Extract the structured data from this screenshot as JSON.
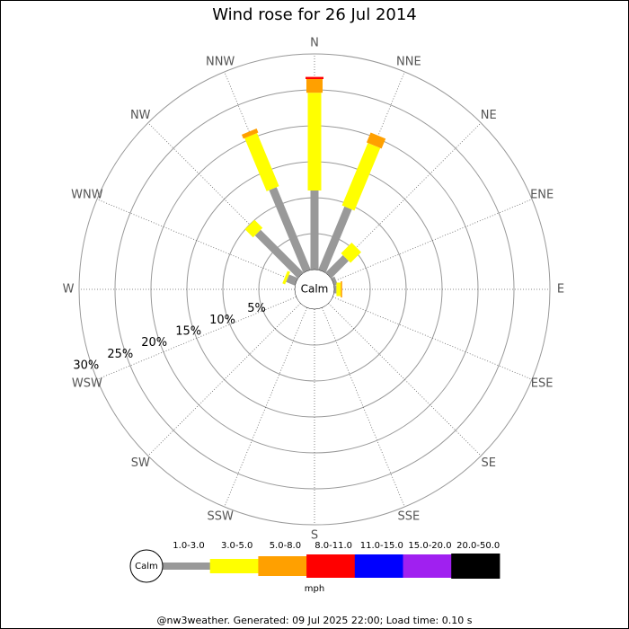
{
  "chart_data": {
    "type": "windrose",
    "title": "Wind rose for 26 Jul 2014",
    "center_label": "Calm",
    "legend_label": "Calm",
    "unit": "mph",
    "footer": "@nw3weather. Generated: 09 Jul 2025 22:00; Load time: 0.10 s",
    "directions": [
      "N",
      "NNE",
      "NE",
      "ENE",
      "E",
      "ESE",
      "SE",
      "SSE",
      "S",
      "SSW",
      "SW",
      "WSW",
      "W",
      "WNW",
      "NW",
      "NNW"
    ],
    "rlim": [
      0,
      30
    ],
    "rticks": [
      {
        "value": 5,
        "label": "5%"
      },
      {
        "value": 10,
        "label": "10%"
      },
      {
        "value": 15,
        "label": "15%"
      },
      {
        "value": 20,
        "label": "20%"
      },
      {
        "value": 25,
        "label": "25%"
      },
      {
        "value": 30,
        "label": "30%"
      }
    ],
    "series": [
      {
        "name": "1.0-3.0",
        "color": "#999999",
        "values": [
          11,
          9.5,
          3.4,
          0.5,
          0.3,
          0,
          0,
          0,
          0,
          0,
          0,
          0,
          0,
          1.3,
          8.4,
          12.4
        ]
      },
      {
        "name": "3.0-5.0",
        "color": "#ffff00",
        "values": [
          13.6,
          9.4,
          2.1,
          0,
          0.6,
          0,
          0,
          0,
          0,
          0,
          0,
          0,
          0,
          0.4,
          1.6,
          8
        ]
      },
      {
        "name": "5.0-8.0",
        "color": "#ffa000",
        "values": [
          1.9,
          1.5,
          0,
          0,
          0.2,
          0,
          0,
          0,
          0,
          0,
          0,
          0,
          0,
          0,
          0,
          0.6
        ]
      },
      {
        "name": "8.0-11.0",
        "color": "#ff0000",
        "values": [
          0.3,
          0,
          0,
          0,
          0,
          0,
          0,
          0,
          0,
          0,
          0,
          0,
          0,
          0,
          0,
          0
        ]
      },
      {
        "name": "11.0-15.0",
        "color": "#0000ff",
        "values": [
          0,
          0,
          0,
          0,
          0,
          0,
          0,
          0,
          0,
          0,
          0,
          0,
          0,
          0,
          0,
          0
        ]
      },
      {
        "name": "15.0-20.0",
        "color": "#a020f0",
        "values": [
          0,
          0,
          0,
          0,
          0,
          0,
          0,
          0,
          0,
          0,
          0,
          0,
          0,
          0,
          0,
          0
        ]
      },
      {
        "name": "20.0-50.0",
        "color": "#000000",
        "values": [
          0,
          0,
          0,
          0,
          0,
          0,
          0,
          0,
          0,
          0,
          0,
          0,
          0,
          0,
          0,
          0
        ]
      }
    ]
  }
}
